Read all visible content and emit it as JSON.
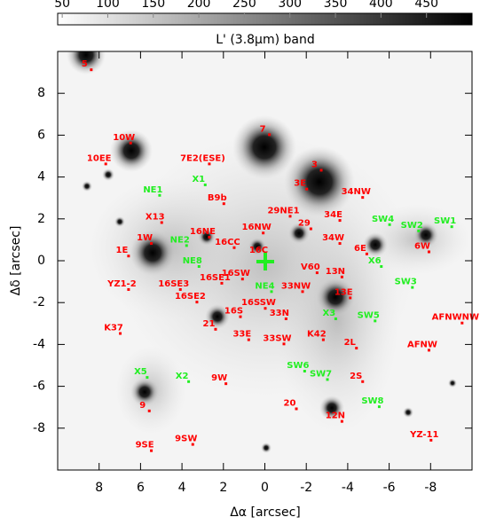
{
  "chart_data": {
    "type": "scatter",
    "title": "L' (3.8μm) band",
    "xlabel": "Δα [arcsec]",
    "ylabel": "Δδ [arcsec]",
    "xlim": [
      10,
      -10
    ],
    "ylim": [
      -10,
      10
    ],
    "xticks": [
      8,
      6,
      4,
      2,
      0,
      -2,
      -4,
      -6,
      -8
    ],
    "yticks": [
      -8,
      -6,
      -4,
      -2,
      0,
      2,
      4,
      6,
      8
    ],
    "colorbar": {
      "lim": [
        45,
        500
      ],
      "ticks": [
        50,
        100,
        150,
        200,
        250,
        300,
        350,
        400,
        450
      ]
    },
    "series": [
      {
        "color": "#ff0000",
        "labels": [
          "5",
          "10W",
          "10EE",
          "7",
          "7E2(ESE)",
          "3",
          "3E",
          "B9b",
          "34NW",
          "29NE1",
          "34E",
          "X13",
          "29",
          "16NE",
          "16NW",
          "1W",
          "16CC",
          "34W",
          "6E",
          "6W",
          "1E",
          "16C",
          "V60",
          "13N",
          "16SW",
          "16SE1",
          "YZ1-2",
          "16SE3",
          "33NW",
          "16SE2",
          "13E",
          "16SSW",
          "16S",
          "33N",
          "21",
          "AFNWNW",
          "K37",
          "33E",
          "33SW",
          "K42",
          "2L",
          "AFNW",
          "9W",
          "2S",
          "20",
          "9",
          "12N",
          "9SE",
          "9SW",
          "YZ-11"
        ],
        "x": [
          8.7,
          6.8,
          8.0,
          0.1,
          3.0,
          -2.4,
          -1.7,
          2.3,
          -4.4,
          -0.9,
          -3.3,
          5.3,
          -1.9,
          3.0,
          0.4,
          5.8,
          1.8,
          -3.3,
          -4.6,
          -7.6,
          6.9,
          0.3,
          -2.2,
          -3.4,
          1.4,
          2.4,
          6.9,
          4.4,
          -1.5,
          3.6,
          -3.8,
          0.3,
          1.5,
          -0.7,
          2.7,
          -9.2,
          7.3,
          1.1,
          -0.6,
          -2.5,
          -4.1,
          -7.6,
          2.2,
          -4.4,
          -1.2,
          5.9,
          -3.4,
          5.8,
          3.8,
          -7.7
        ],
        "values": [
          9.4,
          5.9,
          4.9,
          6.3,
          4.9,
          4.6,
          3.7,
          3.0,
          3.3,
          2.4,
          2.2,
          2.1,
          1.8,
          1.4,
          1.6,
          1.1,
          0.9,
          1.1,
          0.6,
          0.7,
          0.5,
          0.5,
          -0.3,
          -0.5,
          -0.6,
          -0.8,
          -1.1,
          -1.1,
          -1.2,
          -1.7,
          -1.5,
          -2.0,
          -2.4,
          -2.5,
          -3.0,
          -2.7,
          -3.2,
          -3.5,
          -3.7,
          -3.5,
          -3.9,
          -4.0,
          -5.6,
          -5.5,
          -6.8,
          -6.9,
          -7.4,
          -8.8,
          -8.5,
          -8.3
        ]
      },
      {
        "color": "#22ee22",
        "labels": [
          "NE1",
          "X1",
          "SW4",
          "SW2",
          "SW1",
          "NE2",
          "NE8",
          "X6",
          "SW3",
          "NE4",
          "X3",
          "SW5",
          "SW6",
          "SW7",
          "SW8",
          "X5",
          "X2"
        ],
        "x": [
          5.4,
          3.2,
          -5.7,
          -7.1,
          -8.7,
          4.1,
          3.5,
          -5.3,
          -6.8,
          0.0,
          -3.1,
          -5.0,
          -1.6,
          -2.7,
          -5.2,
          6.0,
          4.0
        ],
        "values": [
          3.4,
          3.9,
          2.0,
          1.7,
          1.9,
          1.0,
          0.0,
          0.0,
          -1.0,
          -1.2,
          -2.5,
          -2.6,
          -5.0,
          -5.4,
          -6.7,
          -5.3,
          -5.5
        ]
      }
    ]
  }
}
